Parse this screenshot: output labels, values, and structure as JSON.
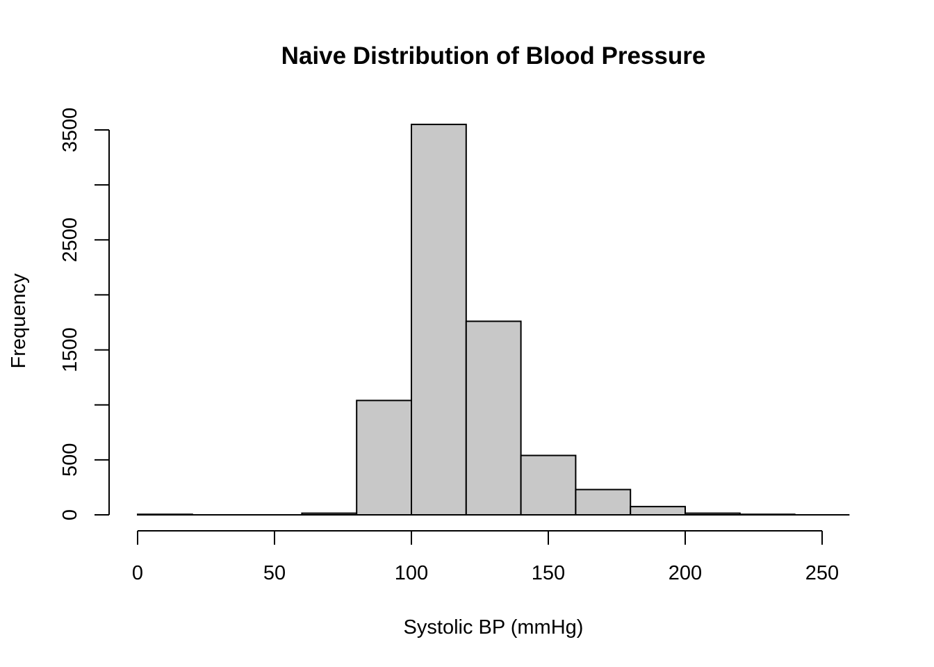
{
  "chart_data": {
    "type": "bar",
    "title": "Naive Distribution of Blood Pressure",
    "xlabel": "Systolic BP (mmHg)",
    "ylabel": "Frequency",
    "bin_edges": [
      0,
      20,
      40,
      60,
      80,
      100,
      120,
      140,
      160,
      180,
      200,
      220,
      240,
      260
    ],
    "values": [
      5,
      0,
      0,
      15,
      1040,
      3550,
      1760,
      540,
      230,
      75,
      15,
      5,
      0
    ],
    "xlim": [
      0,
      260
    ],
    "ylim": [
      0,
      3550
    ],
    "x_ticks": [
      0,
      50,
      100,
      150,
      200,
      250
    ],
    "y_ticks": [
      0,
      500,
      1000,
      1500,
      2000,
      2500,
      3000,
      3500
    ],
    "y_tick_labels": [
      "0",
      "500",
      "",
      "1500",
      "",
      "2500",
      "",
      "3500"
    ],
    "grid": false,
    "bar_fill": "#c8c8c8",
    "bar_stroke": "#000000"
  }
}
